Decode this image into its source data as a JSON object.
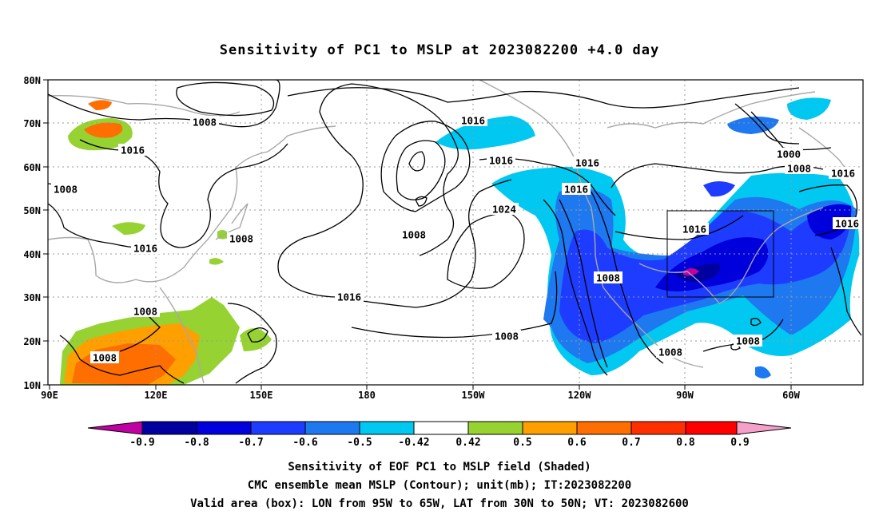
{
  "title": "Sensitivity of PC1 to MSLP at 2023082200 +4.0 day",
  "lat_ticks": [
    "80N",
    "70N",
    "60N",
    "50N",
    "40N",
    "30N",
    "20N",
    "10N"
  ],
  "lon_ticks": [
    "90E",
    "120E",
    "150E",
    "180",
    "150W",
    "120W",
    "90W",
    "60W"
  ],
  "colorbar": {
    "tick_labels": [
      "-0.9",
      "-0.8",
      "-0.7",
      "-0.6",
      "-0.5",
      "-0.42",
      "0.42",
      "0.5",
      "0.6",
      "0.7",
      "0.8",
      "0.9"
    ],
    "colors": {
      "below_min": "#c000a0",
      "bins": [
        "#0000a0",
        "#0000dc",
        "#1e3cff",
        "#1e78f0",
        "#00c8f0",
        "#ffffff",
        "#96d232",
        "#ffa000",
        "#ff6e00",
        "#ff3000",
        "#ff0000"
      ],
      "above_max": "#f4a0c8"
    }
  },
  "contour_labels": [
    {
      "text": "1008"
    },
    {
      "text": "1016"
    },
    {
      "text": "1008"
    },
    {
      "text": "1016"
    },
    {
      "text": "1008"
    },
    {
      "text": "1008"
    },
    {
      "text": "1008"
    },
    {
      "text": "1016"
    },
    {
      "text": "1024"
    },
    {
      "text": "1008"
    },
    {
      "text": "1016"
    },
    {
      "text": "1016"
    },
    {
      "text": "1008"
    },
    {
      "text": "1016"
    },
    {
      "text": "1016"
    },
    {
      "text": "1008"
    },
    {
      "text": "1008"
    },
    {
      "text": "1000"
    },
    {
      "text": "1008"
    },
    {
      "text": "1016"
    },
    {
      "text": "1016"
    },
    {
      "text": "1008"
    },
    {
      "text": "1016"
    }
  ],
  "valid_box": {
    "lon_from": "95W",
    "lon_to": "65W",
    "lat_from": "30N",
    "lat_to": "50N"
  },
  "caption": {
    "line1": "Sensitivity of EOF PC1 to MSLP field (Shaded)",
    "line2": "CMC ensemble mean MSLP (Contour); unit(mb); IT:2023082200",
    "line3": "Valid area (box): LON from 95W to 65W, LAT from 30N to 50N; VT: 2023082600"
  }
}
